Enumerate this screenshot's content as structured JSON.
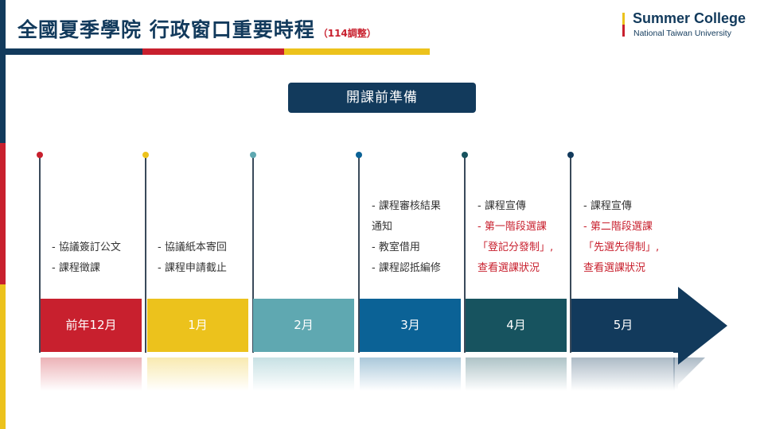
{
  "header": {
    "title": "全國夏季學院  行政窗口重要時程",
    "note": "（114調整）"
  },
  "logo": {
    "name": "Summer College",
    "sub": "National Taiwan University"
  },
  "section": {
    "label": "開課前準備"
  },
  "colors": {
    "navy": "#123a5c",
    "red": "#c8202e",
    "yellow": "#ecc21c",
    "teal": "#5fa8b1",
    "blue": "#0b6296",
    "darkteal": "#17535f"
  },
  "timeline": [
    {
      "month": "前年12月",
      "notes": [
        {
          "text": "- 協議簽訂公文",
          "highlight": false
        },
        {
          "text": "- 課程徵課",
          "highlight": false
        }
      ]
    },
    {
      "month": "1月",
      "notes": [
        {
          "text": "- 協議紙本寄回",
          "highlight": false
        },
        {
          "text": "- 課程申請截止",
          "highlight": false
        }
      ]
    },
    {
      "month": "2月",
      "notes": []
    },
    {
      "month": "3月",
      "notes": [
        {
          "text": "- 課程審核結果",
          "highlight": false
        },
        {
          "text": "通知",
          "highlight": false
        },
        {
          "text": "- 教室借用",
          "highlight": false
        },
        {
          "text": "- 課程認抵編修",
          "highlight": false
        }
      ]
    },
    {
      "month": "4月",
      "notes": [
        {
          "text": "- 課程宣傳",
          "highlight": false
        },
        {
          "text": "- 第一階段選課",
          "highlight": true
        },
        {
          "text": "「登記分發制」,",
          "highlight": true
        },
        {
          "text": "查看選課狀況",
          "highlight": true
        }
      ]
    },
    {
      "month": "5月",
      "notes": [
        {
          "text": "- 課程宣傳",
          "highlight": false
        },
        {
          "text": "- 第二階段選課",
          "highlight": true
        },
        {
          "text": "「先選先得制」,",
          "highlight": true
        },
        {
          "text": "查看選課狀況",
          "highlight": true
        }
      ]
    }
  ]
}
